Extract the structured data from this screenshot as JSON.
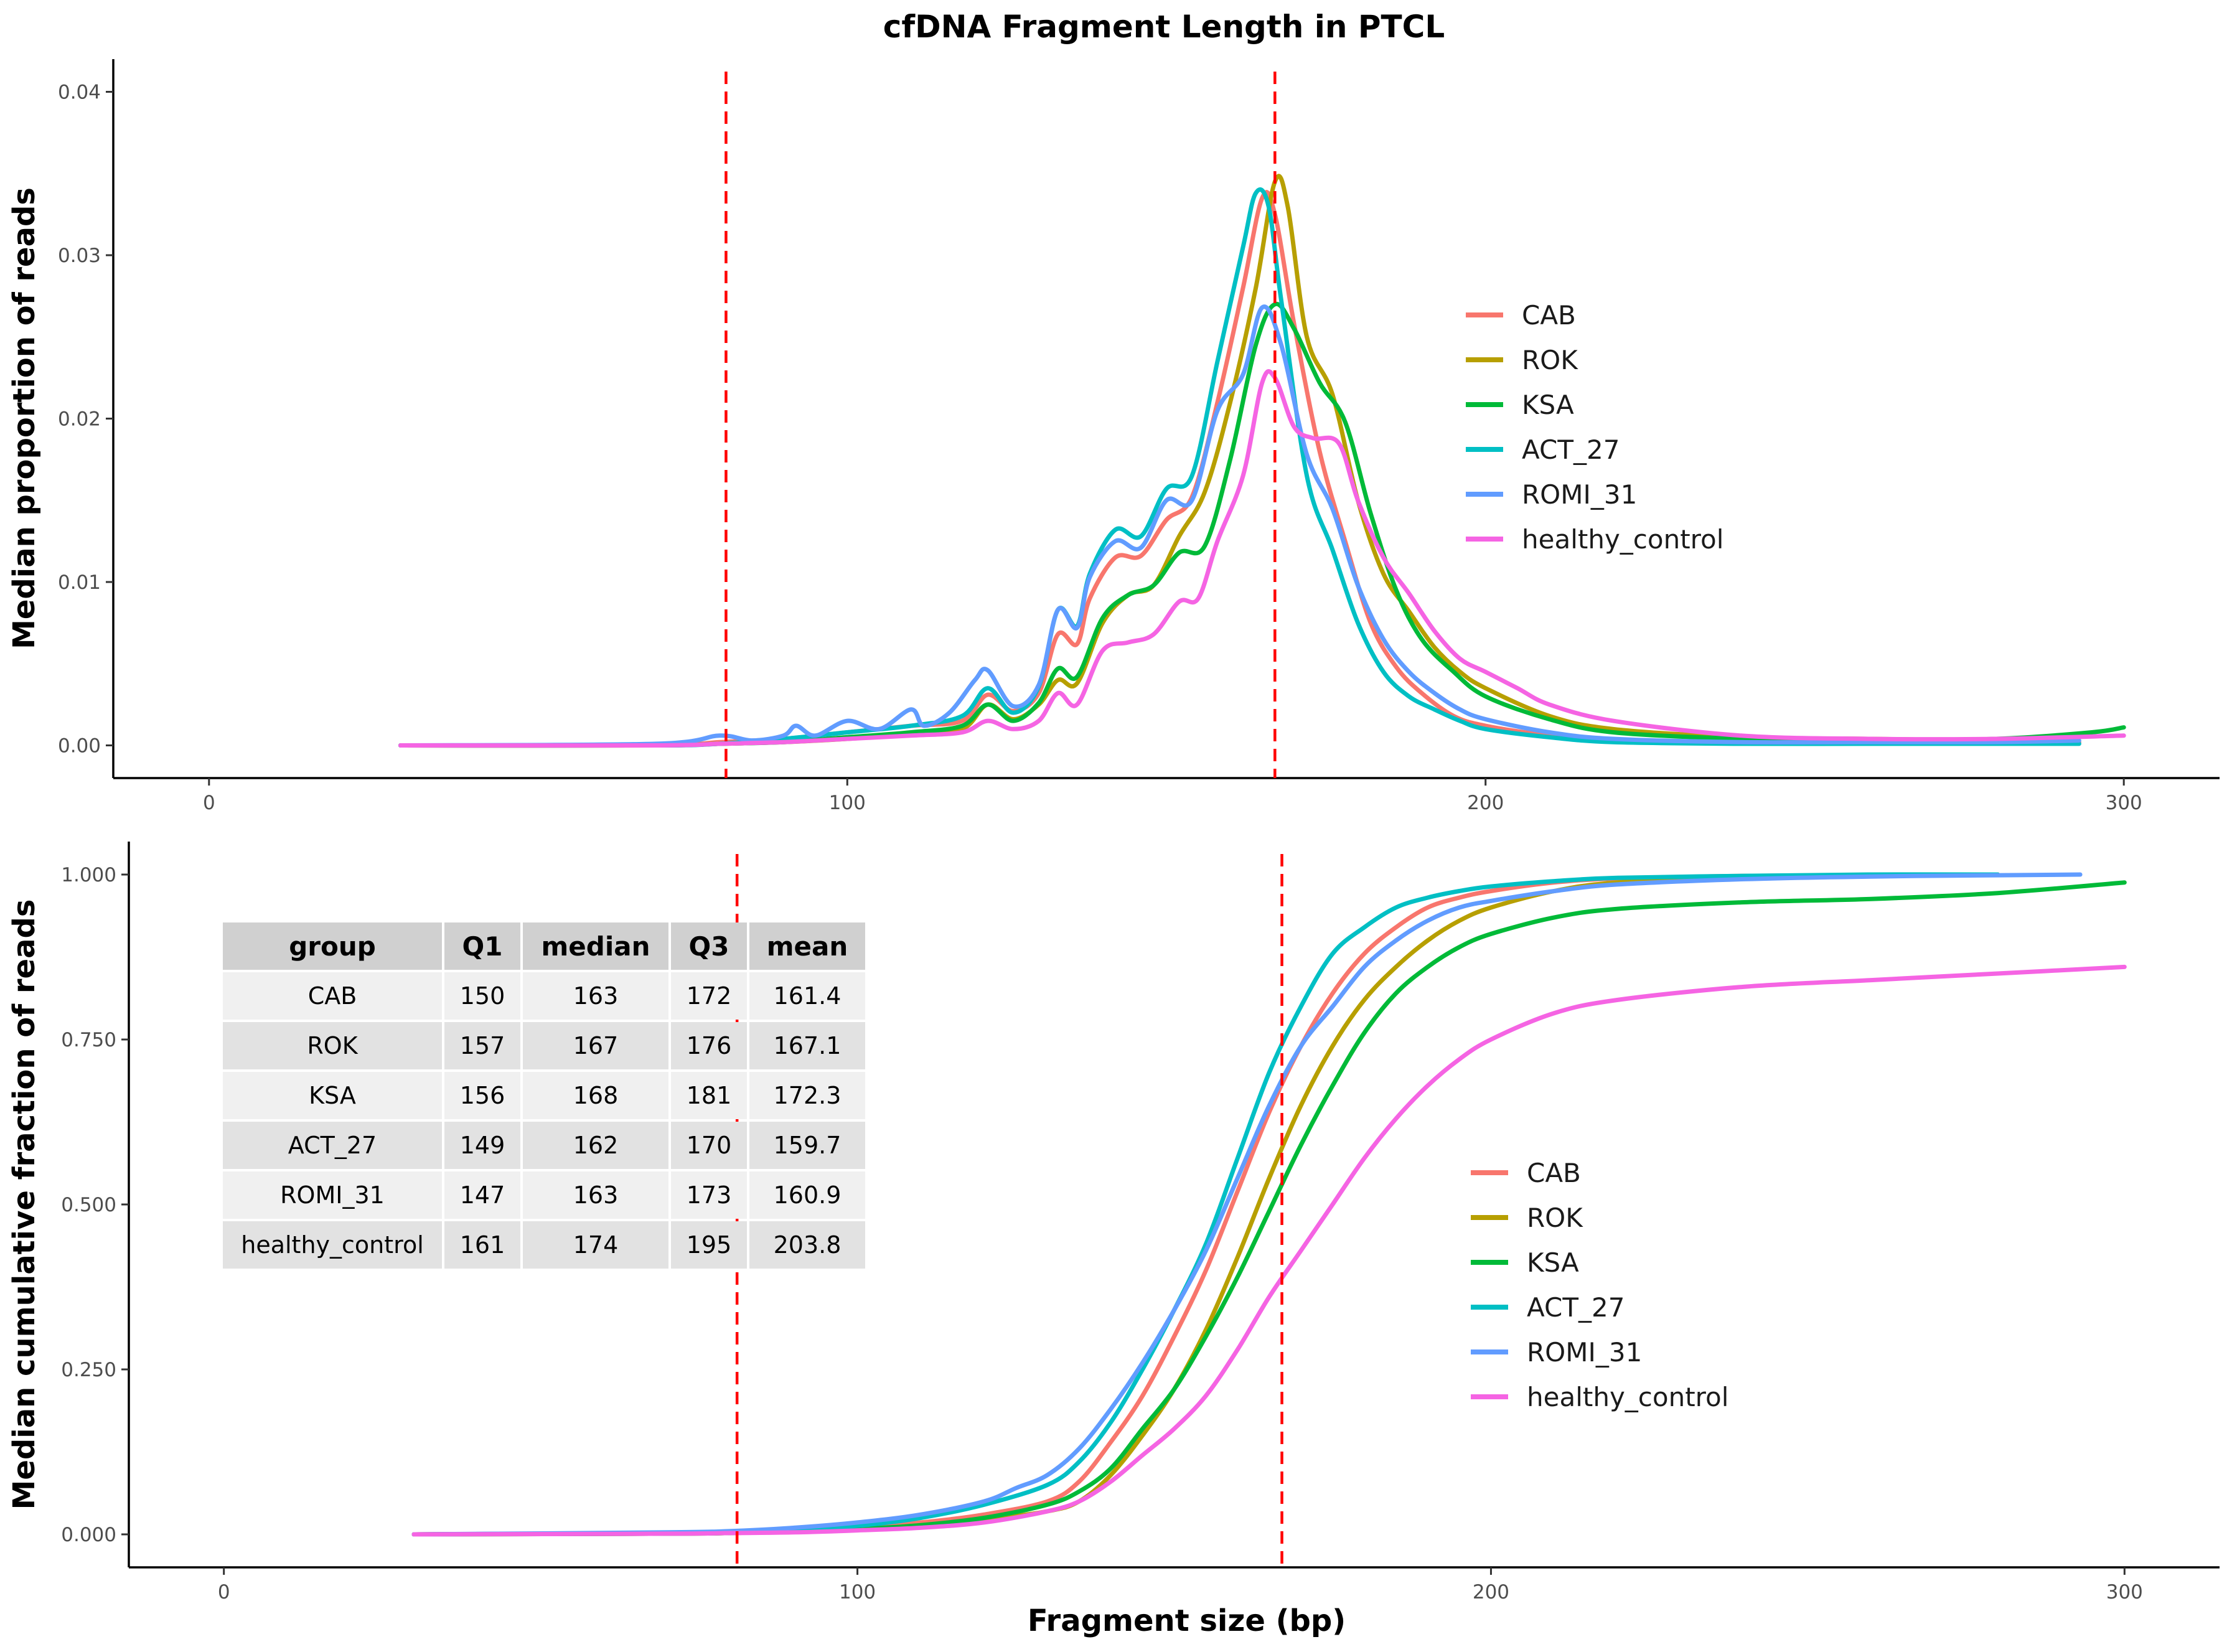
{
  "title": "cfDNA Fragment Length in PTCL",
  "chart_data": [
    {
      "type": "line",
      "ylabel": "Median proportion of reads",
      "xlabel": "",
      "xlim": [
        -15,
        315
      ],
      "ylim": [
        -0.002,
        0.042
      ],
      "xticks": [
        0,
        100,
        200,
        300
      ],
      "xtick_labels": [
        "0",
        "100",
        "200",
        "300"
      ],
      "yticks": [
        0,
        0.01,
        0.02,
        0.03,
        0.04
      ],
      "ytick_labels": [
        "0.00",
        "0.01",
        "0.02",
        "0.03",
        "0.04"
      ],
      "vlines": [
        81,
        167
      ],
      "legend_position": "right",
      "series": [
        {
          "name": "CAB",
          "color": "#F8766D",
          "x": [
            30,
            70,
            80,
            90,
            100,
            110,
            118,
            122,
            126,
            130,
            133,
            136,
            138,
            142,
            146,
            150,
            154,
            158,
            162,
            165,
            167,
            170,
            174,
            178,
            182,
            186,
            190,
            195,
            200,
            210,
            220,
            240,
            260,
            280,
            293
          ],
          "y": [
            0,
            0,
            0.0002,
            0.0004,
            0.0008,
            0.0012,
            0.0015,
            0.0031,
            0.0021,
            0.0032,
            0.0068,
            0.0062,
            0.009,
            0.0115,
            0.0116,
            0.0138,
            0.0152,
            0.021,
            0.028,
            0.0335,
            0.0325,
            0.0258,
            0.018,
            0.0125,
            0.0075,
            0.0048,
            0.0032,
            0.0018,
            0.0012,
            0.0006,
            0.0003,
            0.0002,
            0.0002,
            0.0002,
            0.0002
          ]
        },
        {
          "name": "ROK",
          "color": "#B79F00",
          "x": [
            30,
            70,
            80,
            90,
            100,
            110,
            118,
            122,
            126,
            130,
            133,
            136,
            140,
            144,
            148,
            152,
            156,
            160,
            164,
            167,
            169,
            172,
            176,
            180,
            184,
            188,
            192,
            196,
            200,
            210,
            220,
            240,
            260,
            280
          ],
          "y": [
            0,
            0,
            0.0001,
            0.0002,
            0.0004,
            0.0007,
            0.001,
            0.0025,
            0.0016,
            0.0025,
            0.004,
            0.0038,
            0.0075,
            0.0092,
            0.0098,
            0.0128,
            0.0155,
            0.021,
            0.028,
            0.0345,
            0.033,
            0.025,
            0.0215,
            0.015,
            0.0105,
            0.0082,
            0.006,
            0.0045,
            0.0035,
            0.0018,
            0.001,
            0.0005,
            0.0004,
            0.0003
          ]
        },
        {
          "name": "KSA",
          "color": "#00BA38",
          "x": [
            30,
            70,
            80,
            90,
            100,
            110,
            118,
            122,
            126,
            130,
            133,
            136,
            140,
            144,
            148,
            152,
            156,
            160,
            164,
            167,
            170,
            174,
            178,
            182,
            186,
            190,
            195,
            200,
            210,
            220,
            240,
            260,
            280,
            295,
            300
          ],
          "y": [
            0,
            0,
            0.0001,
            0.0002,
            0.0005,
            0.0008,
            0.0012,
            0.0025,
            0.0015,
            0.0026,
            0.0047,
            0.0042,
            0.0078,
            0.0092,
            0.0098,
            0.0118,
            0.0122,
            0.0175,
            0.0245,
            0.027,
            0.0255,
            0.0222,
            0.0198,
            0.0142,
            0.0095,
            0.0065,
            0.0045,
            0.003,
            0.0016,
            0.0008,
            0.0004,
            0.0003,
            0.0004,
            0.0008,
            0.0011
          ]
        },
        {
          "name": "ACT_27",
          "color": "#00BFC4",
          "x": [
            30,
            70,
            80,
            90,
            100,
            110,
            118,
            122,
            126,
            130,
            133,
            136,
            138,
            142,
            146,
            150,
            154,
            158,
            162,
            164,
            166,
            168,
            172,
            176,
            180,
            184,
            188,
            192,
            196,
            200,
            210,
            220,
            240,
            260,
            280,
            293
          ],
          "y": [
            0,
            0,
            0.0001,
            0.0004,
            0.0008,
            0.0012,
            0.0018,
            0.0035,
            0.002,
            0.0036,
            0.0083,
            0.0073,
            0.0105,
            0.0132,
            0.0128,
            0.0157,
            0.0165,
            0.0235,
            0.0305,
            0.0338,
            0.033,
            0.0272,
            0.0165,
            0.012,
            0.0075,
            0.0045,
            0.003,
            0.0022,
            0.0015,
            0.001,
            0.0005,
            0.0002,
            0.0001,
            0.0001,
            0.0001,
            0.0001
          ]
        },
        {
          "name": "ROMI_31",
          "color": "#619CFF",
          "x": [
            30,
            70,
            80,
            85,
            90,
            92,
            95,
            100,
            105,
            110,
            112,
            116,
            120,
            122,
            126,
            130,
            133,
            136,
            138,
            142,
            146,
            150,
            154,
            158,
            162,
            165,
            168,
            172,
            176,
            180,
            184,
            188,
            192,
            196,
            200,
            210,
            220,
            240,
            260,
            280,
            293
          ],
          "y": [
            0,
            0.0001,
            0.0006,
            0.0003,
            0.0006,
            0.0012,
            0.0006,
            0.0015,
            0.001,
            0.0022,
            0.0012,
            0.002,
            0.004,
            0.0046,
            0.0024,
            0.0037,
            0.0083,
            0.0072,
            0.0103,
            0.0125,
            0.0121,
            0.015,
            0.015,
            0.0205,
            0.0227,
            0.0268,
            0.0245,
            0.0178,
            0.0145,
            0.0098,
            0.0065,
            0.0045,
            0.0032,
            0.0022,
            0.0016,
            0.0008,
            0.0004,
            0.0002,
            0.0002,
            0.0002,
            0.0003
          ]
        },
        {
          "name": "healthy_control",
          "color": "#F564E3",
          "x": [
            30,
            70,
            80,
            90,
            100,
            110,
            118,
            122,
            126,
            130,
            133,
            136,
            140,
            144,
            148,
            152,
            155,
            158,
            162,
            165,
            167,
            170,
            173,
            177,
            180,
            184,
            188,
            192,
            196,
            200,
            205,
            210,
            220,
            240,
            260,
            280,
            300
          ],
          "y": [
            0,
            0,
            0.0001,
            0.0002,
            0.0004,
            0.0006,
            0.0008,
            0.0015,
            0.001,
            0.0015,
            0.0032,
            0.0025,
            0.0058,
            0.0063,
            0.0068,
            0.0088,
            0.009,
            0.0125,
            0.0165,
            0.0222,
            0.0225,
            0.0195,
            0.0188,
            0.0185,
            0.015,
            0.0115,
            0.0093,
            0.007,
            0.0053,
            0.0045,
            0.0035,
            0.0025,
            0.0015,
            0.0006,
            0.0004,
            0.0004,
            0.0006
          ]
        }
      ]
    },
    {
      "type": "line",
      "ylabel": "Median cumulative fraction of reads",
      "xlabel": "Fragment size (bp)",
      "xlim": [
        -15,
        315
      ],
      "ylim": [
        -0.05,
        1.05
      ],
      "xticks": [
        0,
        100,
        200,
        300
      ],
      "xtick_labels": [
        "0",
        "100",
        "200",
        "300"
      ],
      "yticks": [
        0,
        0.25,
        0.5,
        0.75,
        1.0
      ],
      "ytick_labels": [
        "0.000",
        "0.250",
        "0.500",
        "0.750",
        "1.000"
      ],
      "vlines": [
        81,
        167
      ],
      "legend_position": "right",
      "series": [
        {
          "name": "CAB",
          "color": "#F8766D",
          "x": [
            30,
            70,
            80,
            90,
            100,
            110,
            120,
            130,
            135,
            140,
            145,
            150,
            155,
            160,
            165,
            170,
            175,
            180,
            185,
            190,
            195,
            200,
            210,
            220,
            240,
            260,
            280
          ],
          "y": [
            0,
            0.002,
            0.003,
            0.006,
            0.01,
            0.018,
            0.03,
            0.05,
            0.08,
            0.14,
            0.21,
            0.3,
            0.4,
            0.52,
            0.64,
            0.74,
            0.82,
            0.88,
            0.92,
            0.95,
            0.965,
            0.975,
            0.988,
            0.994,
            0.998,
            0.999,
            1.0
          ]
        },
        {
          "name": "ROK",
          "color": "#B79F00",
          "x": [
            30,
            70,
            80,
            90,
            100,
            110,
            120,
            130,
            135,
            140,
            145,
            150,
            155,
            160,
            165,
            170,
            175,
            180,
            185,
            190,
            195,
            200,
            210,
            220,
            240,
            260,
            280
          ],
          "y": [
            0,
            0.001,
            0.002,
            0.004,
            0.007,
            0.013,
            0.022,
            0.035,
            0.05,
            0.09,
            0.15,
            0.22,
            0.31,
            0.42,
            0.54,
            0.65,
            0.74,
            0.81,
            0.86,
            0.9,
            0.93,
            0.95,
            0.975,
            0.988,
            0.996,
            0.999,
            1.0
          ]
        },
        {
          "name": "KSA",
          "color": "#00BA38",
          "x": [
            30,
            70,
            80,
            90,
            100,
            110,
            120,
            130,
            135,
            140,
            145,
            150,
            155,
            160,
            165,
            170,
            175,
            180,
            185,
            190,
            195,
            200,
            210,
            220,
            240,
            260,
            280,
            300
          ],
          "y": [
            0,
            0.001,
            0.002,
            0.004,
            0.008,
            0.014,
            0.025,
            0.045,
            0.065,
            0.1,
            0.16,
            0.22,
            0.3,
            0.39,
            0.49,
            0.59,
            0.68,
            0.76,
            0.82,
            0.86,
            0.89,
            0.91,
            0.935,
            0.948,
            0.958,
            0.963,
            0.972,
            0.988
          ]
        },
        {
          "name": "ACT_27",
          "color": "#00BFC4",
          "x": [
            30,
            70,
            80,
            90,
            100,
            110,
            120,
            130,
            135,
            140,
            145,
            150,
            155,
            160,
            165,
            170,
            175,
            180,
            185,
            190,
            195,
            200,
            210,
            220,
            240,
            260,
            280
          ],
          "y": [
            0,
            0.002,
            0.003,
            0.007,
            0.013,
            0.025,
            0.045,
            0.075,
            0.11,
            0.17,
            0.25,
            0.34,
            0.44,
            0.57,
            0.7,
            0.8,
            0.88,
            0.92,
            0.95,
            0.965,
            0.975,
            0.982,
            0.99,
            0.995,
            0.998,
            1.0,
            1.0
          ]
        },
        {
          "name": "ROMI_31",
          "color": "#619CFF",
          "x": [
            30,
            70,
            80,
            90,
            100,
            110,
            120,
            125,
            130,
            135,
            140,
            145,
            150,
            155,
            160,
            165,
            170,
            175,
            180,
            185,
            190,
            195,
            200,
            210,
            220,
            240,
            260,
            280,
            293
          ],
          "y": [
            0,
            0.003,
            0.005,
            0.01,
            0.018,
            0.03,
            0.05,
            0.07,
            0.09,
            0.13,
            0.19,
            0.26,
            0.34,
            0.43,
            0.54,
            0.65,
            0.74,
            0.8,
            0.86,
            0.9,
            0.93,
            0.95,
            0.96,
            0.975,
            0.985,
            0.993,
            0.997,
            0.999,
            1.0
          ]
        },
        {
          "name": "healthy_control",
          "color": "#F564E3",
          "x": [
            30,
            70,
            80,
            90,
            100,
            110,
            120,
            130,
            135,
            140,
            145,
            150,
            155,
            160,
            165,
            170,
            175,
            180,
            185,
            190,
            195,
            200,
            210,
            220,
            240,
            260,
            280,
            300
          ],
          "y": [
            0,
            0.001,
            0.002,
            0.003,
            0.006,
            0.01,
            0.018,
            0.035,
            0.05,
            0.08,
            0.12,
            0.16,
            0.21,
            0.28,
            0.36,
            0.43,
            0.5,
            0.57,
            0.63,
            0.68,
            0.72,
            0.75,
            0.79,
            0.81,
            0.83,
            0.84,
            0.85,
            0.86
          ]
        }
      ],
      "table": {
        "columns": [
          "group",
          "Q1",
          "median",
          "Q3",
          "mean"
        ],
        "rows": [
          [
            "CAB",
            "150",
            "163",
            "172",
            "161.4"
          ],
          [
            "ROK",
            "157",
            "167",
            "176",
            "167.1"
          ],
          [
            "KSA",
            "156",
            "168",
            "181",
            "172.3"
          ],
          [
            "ACT_27",
            "149",
            "162",
            "170",
            "159.7"
          ],
          [
            "ROMI_31",
            "147",
            "163",
            "173",
            "160.9"
          ],
          [
            "healthy_control",
            "161",
            "174",
            "195",
            "203.8"
          ]
        ]
      }
    }
  ]
}
